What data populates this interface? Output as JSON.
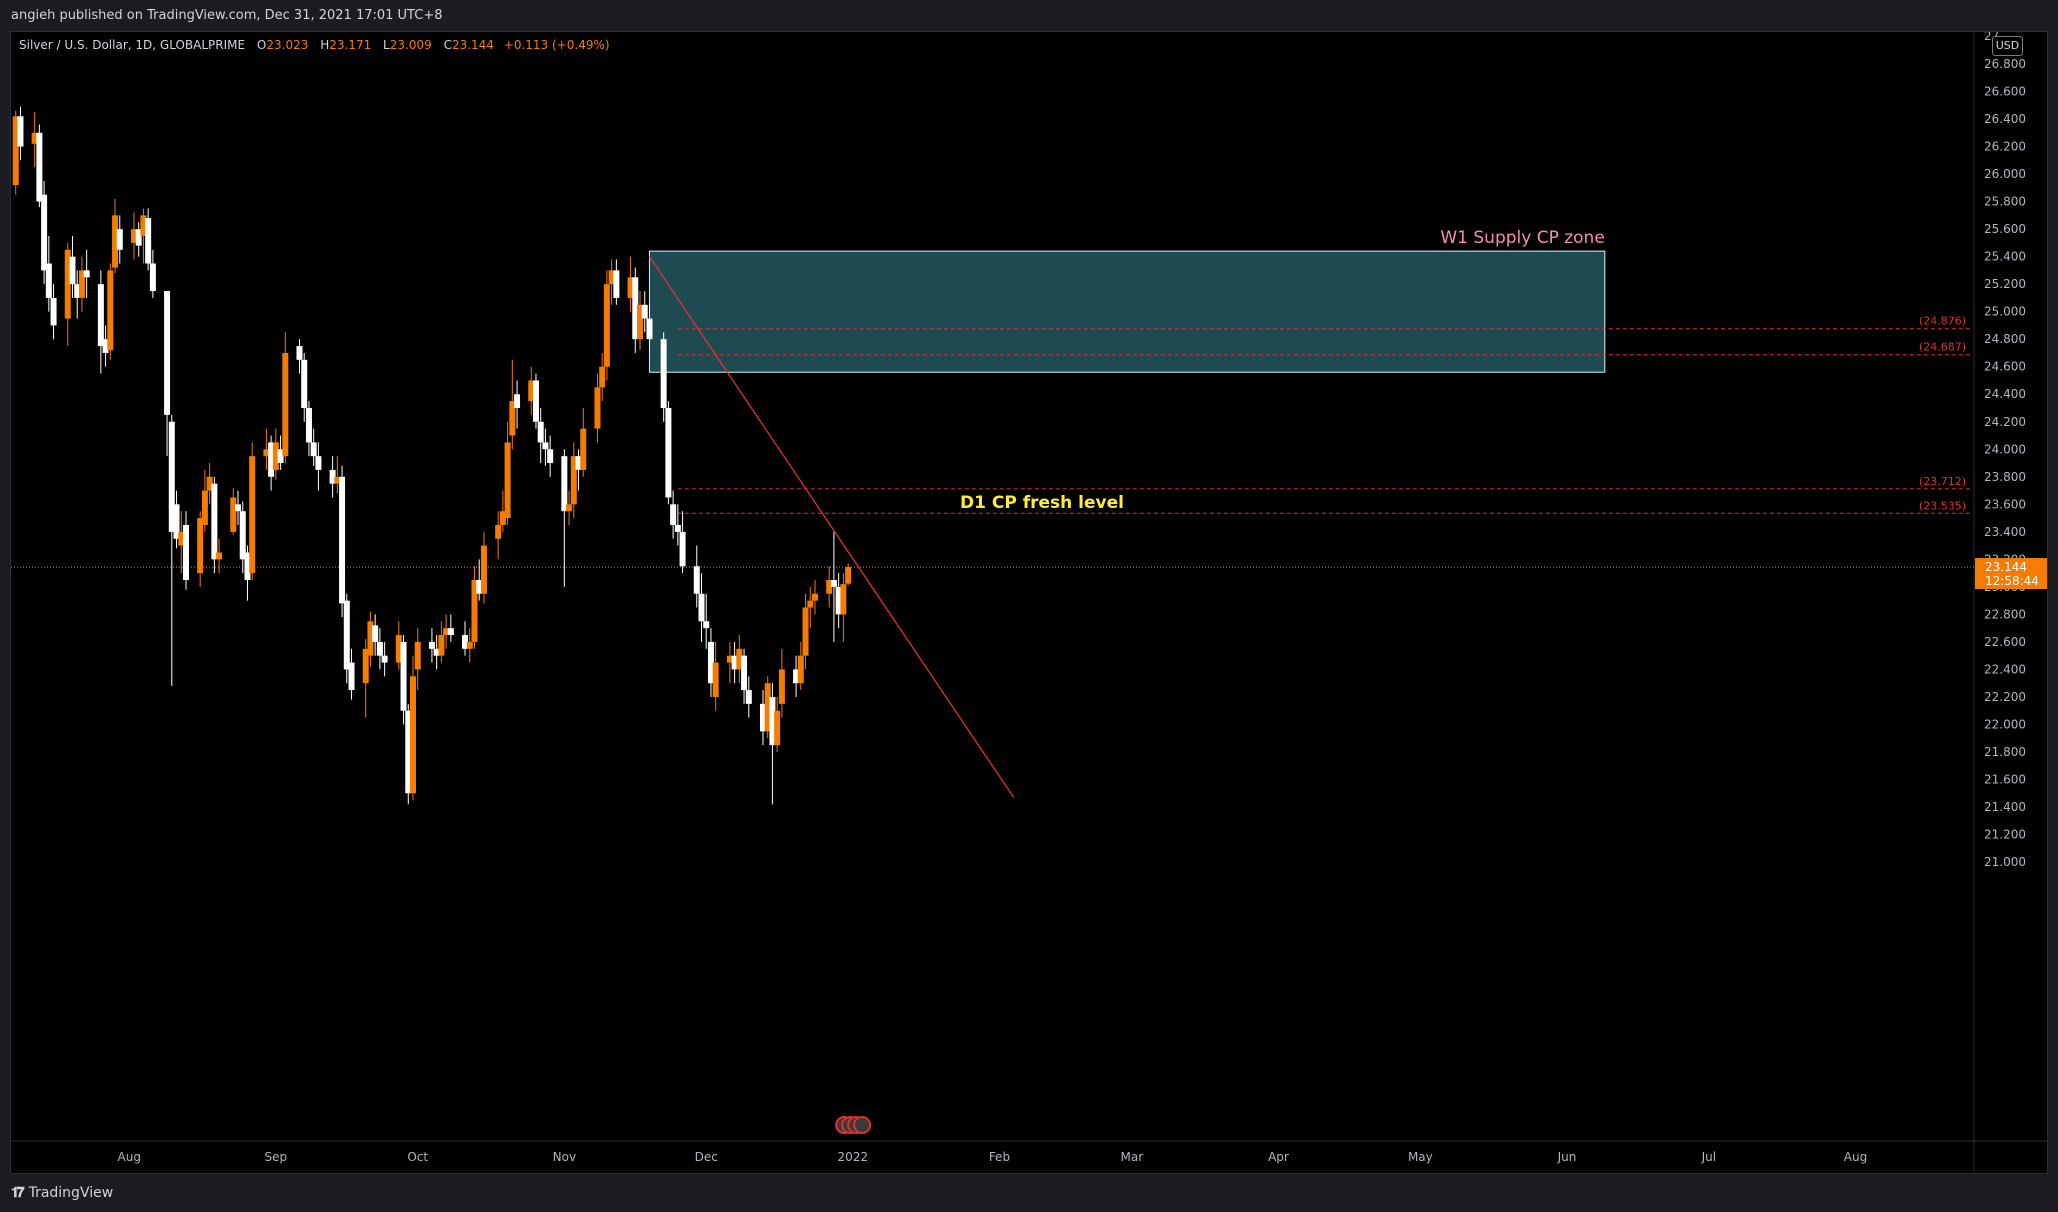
{
  "header": {
    "published": "angieh published on TradingView.com, Dec 31, 2021 17:01 UTC+8"
  },
  "legend": {
    "symbol": "Silver / U.S. Dollar, 1D, GLOBALPRIME",
    "o_label": "O",
    "o_value": "23.023",
    "h_label": "H",
    "h_value": "23.171",
    "l_label": "L",
    "l_value": "23.009",
    "c_label": "C",
    "c_value": "23.144",
    "change": "+0.113 (+0.49%)"
  },
  "currency": "USD",
  "footer": {
    "brand": "TradingView"
  },
  "colors": {
    "up": "#f57c00",
    "down": "#ffffff",
    "background": "#000000",
    "zone": "#1e4a52",
    "zone_border": "#e0f0f0",
    "trendline": "#e03030",
    "dashed": "#e03030",
    "zone_label": "#f48fb1",
    "level_label": "#ffeb3b",
    "price_tag": "#f57c00"
  },
  "chart_data": {
    "type": "candlestick",
    "price_ticks": [
      "26.800",
      "26.600",
      "26.400",
      "26.200",
      "26.000",
      "25.800",
      "25.600",
      "25.400",
      "25.200",
      "25.000",
      "24.800",
      "24.600",
      "24.400",
      "24.200",
      "24.000",
      "23.800",
      "23.600",
      "23.400",
      "23.200",
      "23.000",
      "22.800",
      "22.600",
      "22.400",
      "22.200",
      "22.000",
      "21.800",
      "21.600",
      "21.400",
      "21.200",
      "21.000"
    ],
    "ylim": [
      20.85,
      27.05
    ],
    "month_labels": [
      {
        "label": "Aug",
        "x": "2021-08-01"
      },
      {
        "label": "Sep",
        "x": "2021-09-01"
      },
      {
        "label": "Oct",
        "x": "2021-10-01"
      },
      {
        "label": "Nov",
        "x": "2021-11-01"
      },
      {
        "label": "Dec",
        "x": "2021-12-01"
      },
      {
        "label": "2022",
        "x": "2022-01-01"
      },
      {
        "label": "Feb",
        "x": "2022-02-01"
      },
      {
        "label": "Mar",
        "x": "2022-03-01"
      },
      {
        "label": "Apr",
        "x": "2022-04-01"
      },
      {
        "label": "May",
        "x": "2022-05-01"
      },
      {
        "label": "Jun",
        "x": "2022-06-01"
      },
      {
        "label": "Jul",
        "x": "2022-07-01"
      },
      {
        "label": "Aug",
        "x": "2022-08-01"
      }
    ],
    "xlim": [
      "2021-07-07",
      "2022-09-05"
    ],
    "candles": [
      [
        "2021-07-08",
        25.92,
        26.42,
        26.46,
        25.85
      ],
      [
        "2021-07-09",
        26.42,
        26.2,
        26.49,
        26.1
      ],
      [
        "2021-07-12",
        26.22,
        26.3,
        26.45,
        26.05
      ],
      [
        "2021-07-13",
        26.3,
        25.8,
        26.36,
        25.76
      ],
      [
        "2021-07-14",
        25.85,
        25.3,
        25.95,
        25.2
      ],
      [
        "2021-07-15",
        25.35,
        25.1,
        25.55,
        25.0
      ],
      [
        "2021-07-16",
        25.1,
        24.9,
        25.2,
        24.8
      ],
      [
        "2021-07-19",
        24.95,
        25.45,
        25.5,
        24.75
      ],
      [
        "2021-07-20",
        25.4,
        25.2,
        25.55,
        25.1
      ],
      [
        "2021-07-21",
        25.2,
        25.1,
        25.3,
        24.95
      ],
      [
        "2021-07-22",
        25.1,
        25.3,
        25.4,
        25.0
      ],
      [
        "2021-07-23",
        25.3,
        25.25,
        25.45,
        25.1
      ],
      [
        "2021-07-26",
        25.2,
        24.75,
        25.3,
        24.55
      ],
      [
        "2021-07-27",
        24.8,
        24.7,
        24.9,
        24.6
      ],
      [
        "2021-07-28",
        24.72,
        25.3,
        25.35,
        24.65
      ],
      [
        "2021-07-29",
        25.32,
        25.7,
        25.82,
        25.28
      ],
      [
        "2021-07-30",
        25.6,
        25.45,
        25.7,
        25.35
      ],
      [
        "2021-08-02",
        25.5,
        25.6,
        25.72,
        25.38
      ],
      [
        "2021-08-03",
        25.6,
        25.48,
        25.65,
        25.4
      ],
      [
        "2021-08-04",
        25.55,
        25.7,
        25.75,
        25.35
      ],
      [
        "2021-08-05",
        25.68,
        25.35,
        25.75,
        25.3
      ],
      [
        "2021-08-06",
        25.35,
        25.15,
        25.45,
        25.1
      ],
      [
        "2021-08-09",
        25.15,
        24.25,
        25.15,
        23.95
      ],
      [
        "2021-08-10",
        24.2,
        23.4,
        24.25,
        22.28
      ],
      [
        "2021-08-11",
        23.6,
        23.35,
        23.7,
        23.28
      ],
      [
        "2021-08-12",
        23.3,
        23.4,
        23.55,
        23.1
      ],
      [
        "2021-08-13",
        23.45,
        23.05,
        23.55,
        22.98
      ],
      [
        "2021-08-16",
        23.1,
        23.5,
        23.55,
        23.0
      ],
      [
        "2021-08-17",
        23.45,
        23.7,
        23.85,
        23.4
      ],
      [
        "2021-08-18",
        23.7,
        23.8,
        23.9,
        23.6
      ],
      [
        "2021-08-19",
        23.75,
        23.2,
        23.8,
        23.1
      ],
      [
        "2021-08-20",
        23.2,
        23.25,
        23.35,
        23.1
      ],
      [
        "2021-08-23",
        23.4,
        23.65,
        23.72,
        23.38
      ],
      [
        "2021-08-24",
        23.6,
        23.55,
        23.7,
        23.45
      ],
      [
        "2021-08-25",
        23.55,
        23.2,
        23.62,
        23.1
      ],
      [
        "2021-08-26",
        23.25,
        23.05,
        23.3,
        22.9
      ],
      [
        "2021-08-27",
        23.1,
        23.95,
        24.05,
        23.05
      ],
      [
        "2021-08-30",
        23.95,
        24.0,
        24.15,
        23.85
      ],
      [
        "2021-08-31",
        24.05,
        23.8,
        24.1,
        23.7
      ],
      [
        "2021-09-01",
        23.85,
        24.05,
        24.15,
        23.78
      ],
      [
        "2021-09-02",
        24.0,
        23.9,
        24.1,
        23.85
      ],
      [
        "2021-09-03",
        23.95,
        24.7,
        24.85,
        23.9
      ],
      [
        "2021-09-06",
        24.75,
        24.65,
        24.8,
        24.55
      ],
      [
        "2021-09-07",
        24.65,
        24.3,
        24.7,
        24.2
      ],
      [
        "2021-09-08",
        24.3,
        24.05,
        24.35,
        23.95
      ],
      [
        "2021-09-09",
        24.05,
        23.95,
        24.15,
        23.88
      ],
      [
        "2021-09-10",
        23.95,
        23.85,
        24.05,
        23.7
      ],
      [
        "2021-09-13",
        23.85,
        23.75,
        23.95,
        23.65
      ],
      [
        "2021-09-14",
        23.75,
        23.8,
        23.95,
        23.68
      ],
      [
        "2021-09-15",
        23.8,
        22.88,
        23.88,
        22.78
      ],
      [
        "2021-09-16",
        22.9,
        22.4,
        22.95,
        22.3
      ],
      [
        "2021-09-17",
        22.45,
        22.25,
        22.55,
        22.18
      ],
      [
        "2021-09-20",
        22.3,
        22.55,
        22.62,
        22.05
      ],
      [
        "2021-09-21",
        22.5,
        22.75,
        22.82,
        22.42
      ],
      [
        "2021-09-22",
        22.72,
        22.6,
        22.8,
        22.5
      ],
      [
        "2021-09-23",
        22.6,
        22.5,
        22.7,
        22.4
      ],
      [
        "2021-09-24",
        22.5,
        22.45,
        22.6,
        22.35
      ],
      [
        "2021-09-27",
        22.45,
        22.65,
        22.75,
        22.4
      ],
      [
        "2021-09-28",
        22.6,
        22.1,
        22.65,
        22.0
      ],
      [
        "2021-09-29",
        22.1,
        21.5,
        22.15,
        21.42
      ],
      [
        "2021-09-30",
        21.5,
        22.35,
        22.5,
        21.45
      ],
      [
        "2021-10-01",
        22.4,
        22.6,
        22.7,
        22.25
      ],
      [
        "2021-10-04",
        22.6,
        22.55,
        22.7,
        22.45
      ],
      [
        "2021-10-05",
        22.55,
        22.5,
        22.65,
        22.4
      ],
      [
        "2021-10-06",
        22.5,
        22.65,
        22.75,
        22.45
      ],
      [
        "2021-10-07",
        22.65,
        22.7,
        22.8,
        22.55
      ],
      [
        "2021-10-08",
        22.7,
        22.65,
        22.8,
        22.6
      ],
      [
        "2021-10-11",
        22.65,
        22.55,
        22.75,
        22.5
      ],
      [
        "2021-10-12",
        22.55,
        22.6,
        22.7,
        22.45
      ],
      [
        "2021-10-13",
        22.6,
        23.05,
        23.15,
        22.55
      ],
      [
        "2021-10-14",
        23.05,
        22.95,
        23.2,
        22.9
      ],
      [
        "2021-10-15",
        22.95,
        23.3,
        23.4,
        22.88
      ],
      [
        "2021-10-18",
        23.35,
        23.45,
        23.55,
        23.2
      ],
      [
        "2021-10-19",
        23.45,
        23.55,
        23.7,
        23.4
      ],
      [
        "2021-10-20",
        23.5,
        24.05,
        24.2,
        23.45
      ],
      [
        "2021-10-21",
        24.1,
        24.35,
        24.65,
        24.0
      ],
      [
        "2021-10-22",
        24.4,
        24.3,
        24.5,
        24.15
      ],
      [
        "2021-10-25",
        24.35,
        24.5,
        24.6,
        24.25
      ],
      [
        "2021-10-26",
        24.5,
        24.2,
        24.55,
        24.15
      ],
      [
        "2021-10-27",
        24.2,
        24.05,
        24.3,
        23.9
      ],
      [
        "2021-10-28",
        24.05,
        24.0,
        24.15,
        23.88
      ],
      [
        "2021-10-29",
        24.0,
        23.9,
        24.1,
        23.8
      ],
      [
        "2021-11-01",
        23.95,
        23.55,
        24.0,
        23.0
      ],
      [
        "2021-11-02",
        23.55,
        23.6,
        23.7,
        23.45
      ],
      [
        "2021-11-03",
        23.6,
        23.95,
        24.05,
        23.5
      ],
      [
        "2021-11-04",
        23.95,
        23.85,
        24.0,
        23.7
      ],
      [
        "2021-11-05",
        23.85,
        24.15,
        24.3,
        23.8
      ],
      [
        "2021-11-08",
        24.15,
        24.45,
        24.55,
        24.05
      ],
      [
        "2021-11-09",
        24.45,
        24.6,
        24.7,
        24.35
      ],
      [
        "2021-11-10",
        24.6,
        25.2,
        25.3,
        24.5
      ],
      [
        "2021-11-11",
        25.2,
        25.3,
        25.38,
        25.05
      ],
      [
        "2021-11-12",
        25.3,
        25.1,
        25.38,
        25.05
      ],
      [
        "2021-11-15",
        25.1,
        25.25,
        25.4,
        25.0
      ],
      [
        "2021-11-16",
        25.25,
        24.8,
        25.32,
        24.7
      ],
      [
        "2021-11-17",
        24.8,
        25.05,
        25.15,
        24.72
      ],
      [
        "2021-11-18",
        25.05,
        24.95,
        25.15,
        24.85
      ],
      [
        "2021-11-19",
        24.95,
        24.8,
        25.05,
        24.7
      ],
      [
        "2021-11-22",
        24.8,
        24.3,
        24.85,
        24.2
      ],
      [
        "2021-11-23",
        24.3,
        23.65,
        24.35,
        23.6
      ],
      [
        "2021-11-24",
        23.6,
        23.45,
        23.7,
        23.35
      ],
      [
        "2021-11-25",
        23.45,
        23.4,
        23.6,
        23.3
      ],
      [
        "2021-11-26",
        23.4,
        23.15,
        23.55,
        23.1
      ],
      [
        "2021-11-29",
        23.15,
        22.95,
        23.3,
        22.85
      ],
      [
        "2021-11-30",
        22.95,
        22.75,
        23.1,
        22.6
      ],
      [
        "2021-12-01",
        22.75,
        22.7,
        22.95,
        22.55
      ],
      [
        "2021-12-02",
        22.6,
        22.3,
        22.7,
        22.2
      ],
      [
        "2021-12-03",
        22.2,
        22.45,
        22.6,
        22.1
      ],
      [
        "2021-12-06",
        22.45,
        22.5,
        22.6,
        22.3
      ],
      [
        "2021-12-07",
        22.5,
        22.4,
        22.6,
        22.3
      ],
      [
        "2021-12-08",
        22.4,
        22.55,
        22.65,
        22.3
      ],
      [
        "2021-12-09",
        22.5,
        22.25,
        22.55,
        22.15
      ],
      [
        "2021-12-10",
        22.25,
        22.15,
        22.35,
        22.05
      ],
      [
        "2021-12-13",
        22.15,
        21.95,
        22.25,
        21.85
      ],
      [
        "2021-12-14",
        21.95,
        22.3,
        22.35,
        21.9
      ],
      [
        "2021-12-15",
        22.2,
        21.85,
        22.3,
        21.42
      ],
      [
        "2021-12-16",
        21.85,
        22.1,
        22.2,
        21.8
      ],
      [
        "2021-12-17",
        22.15,
        22.4,
        22.55,
        22.05
      ],
      [
        "2021-12-20",
        22.4,
        22.3,
        22.5,
        22.2
      ],
      [
        "2021-12-21",
        22.3,
        22.5,
        22.6,
        22.25
      ],
      [
        "2021-12-22",
        22.5,
        22.85,
        22.95,
        22.4
      ],
      [
        "2021-12-23",
        22.85,
        22.9,
        23.0,
        22.7
      ],
      [
        "2021-12-24",
        22.9,
        22.95,
        23.05,
        22.8
      ],
      [
        "2021-12-27",
        22.95,
        23.05,
        23.15,
        22.85
      ],
      [
        "2021-12-28",
        23.05,
        23.0,
        23.4,
        22.6
      ],
      [
        "2021-12-29",
        23.0,
        22.8,
        23.1,
        22.7
      ],
      [
        "2021-12-30",
        22.8,
        23.02,
        23.1,
        22.6
      ],
      [
        "2021-12-31",
        23.023,
        23.144,
        23.171,
        23.009
      ]
    ],
    "zone": {
      "label": "W1 Supply CP zone",
      "from": "2021-11-19",
      "to": "2022-06-09",
      "top": 25.44,
      "bottom": 24.56
    },
    "levels": [
      {
        "price": 24.876,
        "label": "(24.876)"
      },
      {
        "price": 24.687,
        "label": "(24.687)"
      },
      {
        "price": 23.712,
        "label": "(23.712)"
      },
      {
        "price": 23.535,
        "label": "(23.535)"
      }
    ],
    "level_text": {
      "label": "D1 CP fresh level",
      "x": "2022-02-10",
      "price": 23.58
    },
    "trendline": {
      "from": [
        "2021-11-19",
        25.4
      ],
      "to": [
        "2022-02-04",
        21.47
      ]
    },
    "current_price": {
      "price": 23.144,
      "label": "23.144",
      "countdown": "12:58:44"
    },
    "axis_partial_top": "27",
    "axis_partial_22": "23.200",
    "axis_partial_23": "23.000"
  }
}
